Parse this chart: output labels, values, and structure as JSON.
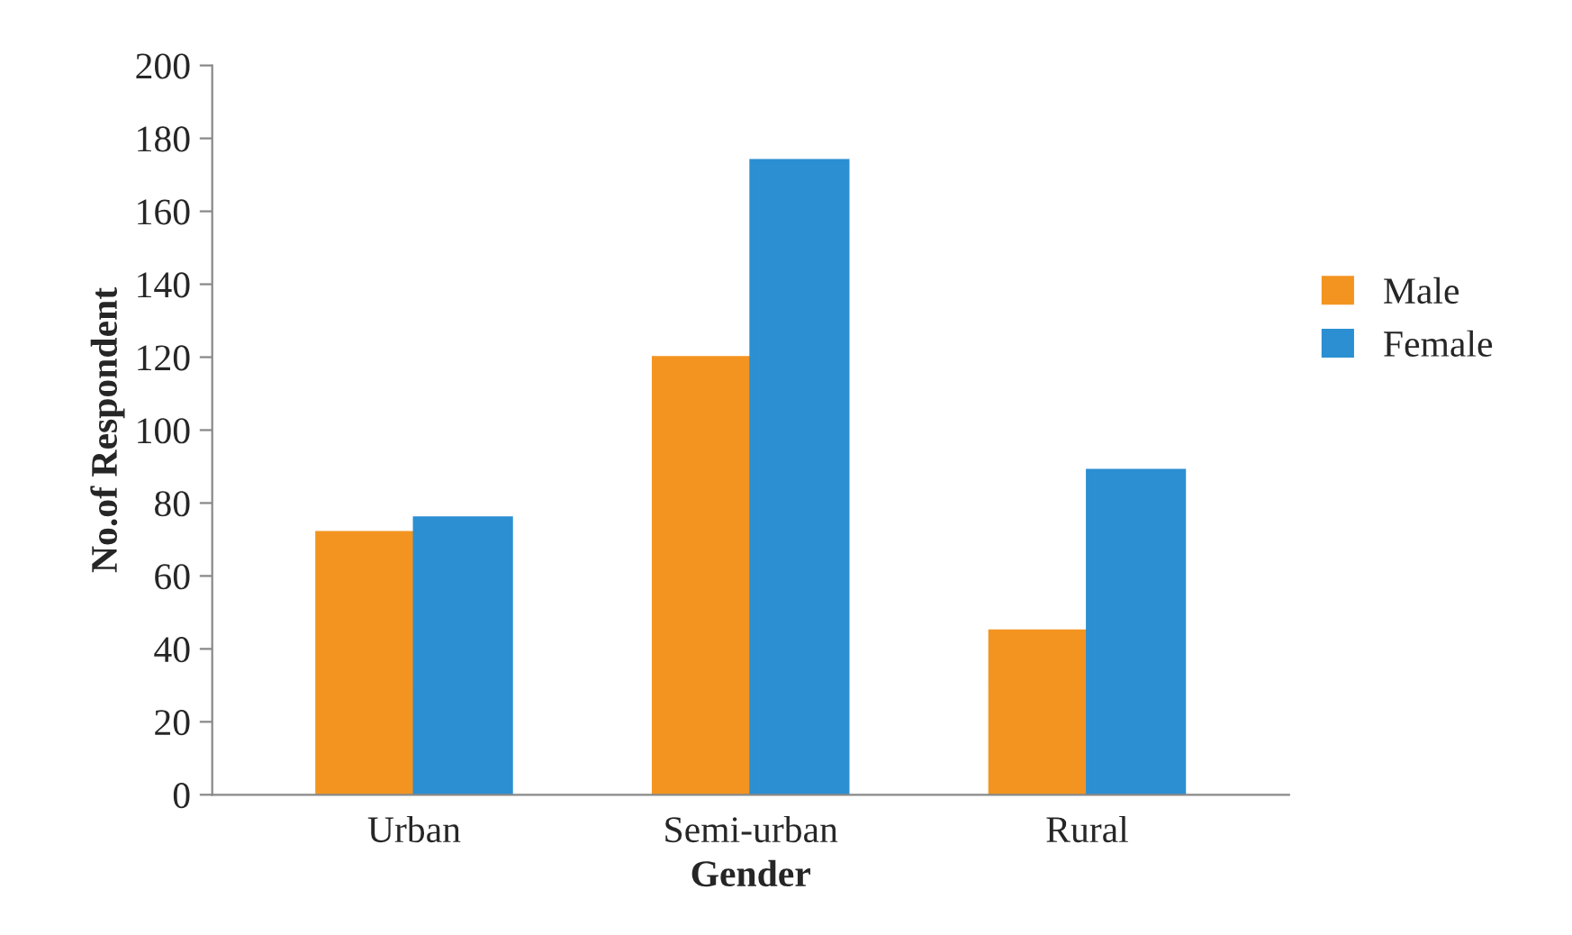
{
  "chart_data": {
    "type": "bar",
    "xlabel": "Gender",
    "ylabel": "No.of Respondent",
    "categories": [
      "Urban",
      "Semi-urban",
      "Rural"
    ],
    "series": [
      {
        "name": "Male",
        "color": "#f39420",
        "values": [
          72,
          120,
          45
        ]
      },
      {
        "name": "Female",
        "color": "#2b8fd2",
        "values": [
          76,
          174,
          89
        ]
      }
    ],
    "ylim": [
      0,
      200
    ],
    "yticks": [
      0,
      20,
      40,
      60,
      80,
      100,
      120,
      140,
      160,
      180,
      200
    ],
    "grid": false,
    "legend": "right"
  }
}
